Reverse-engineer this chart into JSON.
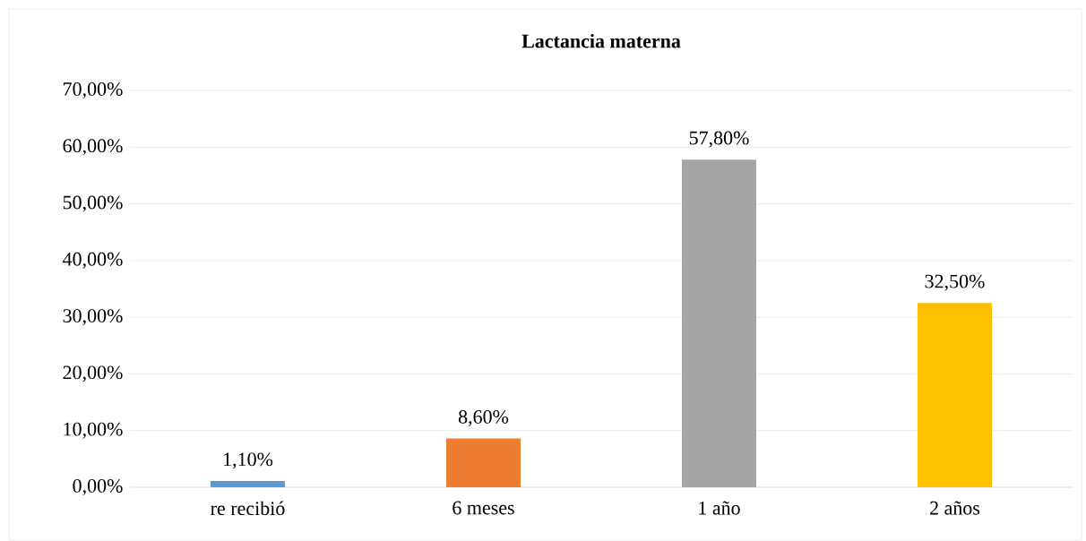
{
  "chart_data": {
    "type": "bar",
    "title": "Lactancia materna",
    "categories": [
      "re recibió",
      "6 meses",
      "1 año",
      "2 años"
    ],
    "values": [
      1.1,
      8.6,
      57.8,
      32.5
    ],
    "value_labels": [
      "1,10%",
      "8,60%",
      "57,80%",
      "32,50%"
    ],
    "colors": [
      "#5b9bd5",
      "#ed7d31",
      "#a5a5a5",
      "#ffc000"
    ],
    "ylim": [
      0,
      70
    ],
    "yticks": [
      {
        "value": 0,
        "label": "0,00%"
      },
      {
        "value": 10,
        "label": "10,00%"
      },
      {
        "value": 20,
        "label": "20,00%"
      },
      {
        "value": 30,
        "label": "30,00%"
      },
      {
        "value": 40,
        "label": "40,00%"
      },
      {
        "value": 50,
        "label": "50,00%"
      },
      {
        "value": 60,
        "label": "60,00%"
      },
      {
        "value": 70,
        "label": "70,00%"
      }
    ],
    "grid": "y"
  }
}
